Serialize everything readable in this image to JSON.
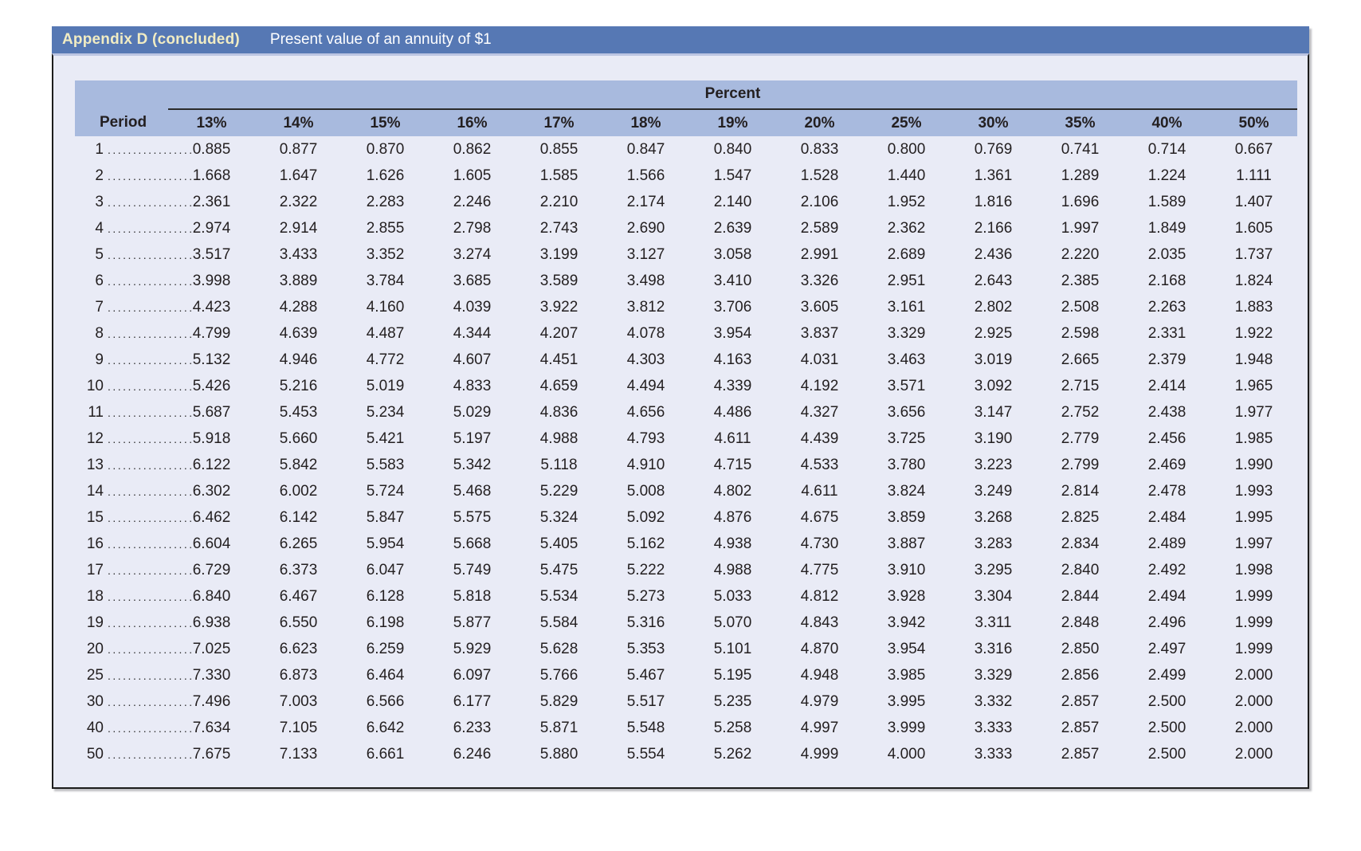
{
  "header": {
    "title": "Appendix D (concluded)",
    "subtitle": "Present value of an annuity of $1"
  },
  "colors": {
    "title_bar": "#5678b4",
    "title_text": "#f1ecc3",
    "subtitle_text": "#ffffff",
    "header_band": "#a8bade",
    "table_background": "#e9ebf6",
    "text": "#231f20",
    "border": "#1c1c1c"
  },
  "table": {
    "group_header": "Percent",
    "period_header": "Period",
    "leader_dots": ".................",
    "rate_headers": [
      "13%",
      "14%",
      "15%",
      "16%",
      "17%",
      "18%",
      "19%",
      "20%",
      "25%",
      "30%",
      "35%",
      "40%",
      "50%"
    ],
    "rows": [
      {
        "period": "1",
        "values": [
          "0.885",
          "0.877",
          "0.870",
          "0.862",
          "0.855",
          "0.847",
          "0.840",
          "0.833",
          "0.800",
          "0.769",
          "0.741",
          "0.714",
          "0.667"
        ]
      },
      {
        "period": "2",
        "values": [
          "1.668",
          "1.647",
          "1.626",
          "1.605",
          "1.585",
          "1.566",
          "1.547",
          "1.528",
          "1.440",
          "1.361",
          "1.289",
          "1.224",
          "1.111"
        ]
      },
      {
        "period": "3",
        "values": [
          "2.361",
          "2.322",
          "2.283",
          "2.246",
          "2.210",
          "2.174",
          "2.140",
          "2.106",
          "1.952",
          "1.816",
          "1.696",
          "1.589",
          "1.407"
        ]
      },
      {
        "period": "4",
        "values": [
          "2.974",
          "2.914",
          "2.855",
          "2.798",
          "2.743",
          "2.690",
          "2.639",
          "2.589",
          "2.362",
          "2.166",
          "1.997",
          "1.849",
          "1.605"
        ]
      },
      {
        "period": "5",
        "values": [
          "3.517",
          "3.433",
          "3.352",
          "3.274",
          "3.199",
          "3.127",
          "3.058",
          "2.991",
          "2.689",
          "2.436",
          "2.220",
          "2.035",
          "1.737"
        ]
      },
      {
        "period": "6",
        "values": [
          "3.998",
          "3.889",
          "3.784",
          "3.685",
          "3.589",
          "3.498",
          "3.410",
          "3.326",
          "2.951",
          "2.643",
          "2.385",
          "2.168",
          "1.824"
        ]
      },
      {
        "period": "7",
        "values": [
          "4.423",
          "4.288",
          "4.160",
          "4.039",
          "3.922",
          "3.812",
          "3.706",
          "3.605",
          "3.161",
          "2.802",
          "2.508",
          "2.263",
          "1.883"
        ]
      },
      {
        "period": "8",
        "values": [
          "4.799",
          "4.639",
          "4.487",
          "4.344",
          "4.207",
          "4.078",
          "3.954",
          "3.837",
          "3.329",
          "2.925",
          "2.598",
          "2.331",
          "1.922"
        ]
      },
      {
        "period": "9",
        "values": [
          "5.132",
          "4.946",
          "4.772",
          "4.607",
          "4.451",
          "4.303",
          "4.163",
          "4.031",
          "3.463",
          "3.019",
          "2.665",
          "2.379",
          "1.948"
        ]
      },
      {
        "period": "10",
        "values": [
          "5.426",
          "5.216",
          "5.019",
          "4.833",
          "4.659",
          "4.494",
          "4.339",
          "4.192",
          "3.571",
          "3.092",
          "2.715",
          "2.414",
          "1.965"
        ]
      },
      {
        "period": "11",
        "values": [
          "5.687",
          "5.453",
          "5.234",
          "5.029",
          "4.836",
          "4.656",
          "4.486",
          "4.327",
          "3.656",
          "3.147",
          "2.752",
          "2.438",
          "1.977"
        ]
      },
      {
        "period": "12",
        "values": [
          "5.918",
          "5.660",
          "5.421",
          "5.197",
          "4.988",
          "4.793",
          "4.611",
          "4.439",
          "3.725",
          "3.190",
          "2.779",
          "2.456",
          "1.985"
        ]
      },
      {
        "period": "13",
        "values": [
          "6.122",
          "5.842",
          "5.583",
          "5.342",
          "5.118",
          "4.910",
          "4.715",
          "4.533",
          "3.780",
          "3.223",
          "2.799",
          "2.469",
          "1.990"
        ]
      },
      {
        "period": "14",
        "values": [
          "6.302",
          "6.002",
          "5.724",
          "5.468",
          "5.229",
          "5.008",
          "4.802",
          "4.611",
          "3.824",
          "3.249",
          "2.814",
          "2.478",
          "1.993"
        ]
      },
      {
        "period": "15",
        "values": [
          "6.462",
          "6.142",
          "5.847",
          "5.575",
          "5.324",
          "5.092",
          "4.876",
          "4.675",
          "3.859",
          "3.268",
          "2.825",
          "2.484",
          "1.995"
        ]
      },
      {
        "period": "16",
        "values": [
          "6.604",
          "6.265",
          "5.954",
          "5.668",
          "5.405",
          "5.162",
          "4.938",
          "4.730",
          "3.887",
          "3.283",
          "2.834",
          "2.489",
          "1.997"
        ]
      },
      {
        "period": "17",
        "values": [
          "6.729",
          "6.373",
          "6.047",
          "5.749",
          "5.475",
          "5.222",
          "4.988",
          "4.775",
          "3.910",
          "3.295",
          "2.840",
          "2.492",
          "1.998"
        ]
      },
      {
        "period": "18",
        "values": [
          "6.840",
          "6.467",
          "6.128",
          "5.818",
          "5.534",
          "5.273",
          "5.033",
          "4.812",
          "3.928",
          "3.304",
          "2.844",
          "2.494",
          "1.999"
        ]
      },
      {
        "period": "19",
        "values": [
          "6.938",
          "6.550",
          "6.198",
          "5.877",
          "5.584",
          "5.316",
          "5.070",
          "4.843",
          "3.942",
          "3.311",
          "2.848",
          "2.496",
          "1.999"
        ]
      },
      {
        "period": "20",
        "values": [
          "7.025",
          "6.623",
          "6.259",
          "5.929",
          "5.628",
          "5.353",
          "5.101",
          "4.870",
          "3.954",
          "3.316",
          "2.850",
          "2.497",
          "1.999"
        ]
      },
      {
        "period": "25",
        "values": [
          "7.330",
          "6.873",
          "6.464",
          "6.097",
          "5.766",
          "5.467",
          "5.195",
          "4.948",
          "3.985",
          "3.329",
          "2.856",
          "2.499",
          "2.000"
        ]
      },
      {
        "period": "30",
        "values": [
          "7.496",
          "7.003",
          "6.566",
          "6.177",
          "5.829",
          "5.517",
          "5.235",
          "4.979",
          "3.995",
          "3.332",
          "2.857",
          "2.500",
          "2.000"
        ]
      },
      {
        "period": "40",
        "values": [
          "7.634",
          "7.105",
          "6.642",
          "6.233",
          "5.871",
          "5.548",
          "5.258",
          "4.997",
          "3.999",
          "3.333",
          "2.857",
          "2.500",
          "2.000"
        ]
      },
      {
        "period": "50",
        "values": [
          "7.675",
          "7.133",
          "6.661",
          "6.246",
          "5.880",
          "5.554",
          "5.262",
          "4.999",
          "4.000",
          "3.333",
          "2.857",
          "2.500",
          "2.000"
        ]
      }
    ]
  },
  "chart_data": {
    "type": "table",
    "title": "Present value of an annuity of $1",
    "row_label": "Period",
    "column_group_label": "Percent",
    "columns": [
      "13%",
      "14%",
      "15%",
      "16%",
      "17%",
      "18%",
      "19%",
      "20%",
      "25%",
      "30%",
      "35%",
      "40%",
      "50%"
    ],
    "periods": [
      1,
      2,
      3,
      4,
      5,
      6,
      7,
      8,
      9,
      10,
      11,
      12,
      13,
      14,
      15,
      16,
      17,
      18,
      19,
      20,
      25,
      30,
      40,
      50
    ]
  }
}
